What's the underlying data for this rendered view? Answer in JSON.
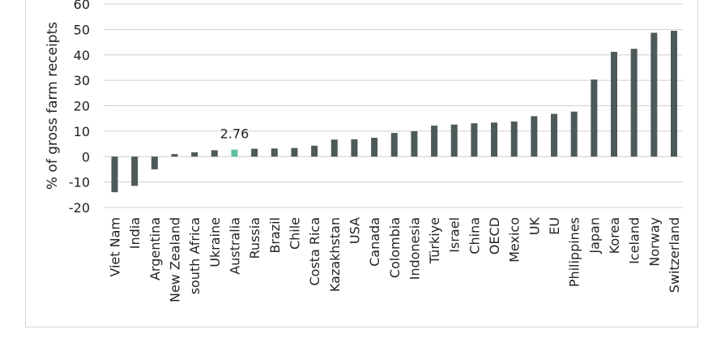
{
  "chart_data": {
    "type": "bar",
    "ylabel": "% of gross farm receipts",
    "ylim": [
      -20,
      60
    ],
    "yticks": [
      -20,
      -10,
      0,
      10,
      20,
      30,
      40,
      50,
      60
    ],
    "grid": true,
    "categories": [
      "Viet Nam",
      "India",
      "Argentina",
      "New Zealand",
      "south Africa",
      "Ukraine",
      "Australia",
      "Russia",
      "Brazil",
      "Chile",
      "Costa Rica",
      "Kazakhstan",
      "USA",
      "Canada",
      "Colombia",
      "Indonesia",
      "Türkiye",
      "Israel",
      "China",
      "OECD",
      "Mexico",
      "UK",
      "EU",
      "Philippines",
      "Japan",
      "Korea",
      "Iceland",
      "Norway",
      "Switzerland"
    ],
    "values": [
      -14,
      -11.5,
      -5,
      1,
      1.7,
      2.5,
      2.76,
      3.1,
      3.2,
      3.4,
      4.3,
      6.7,
      6.8,
      7.4,
      9.3,
      10,
      12.2,
      12.6,
      13.1,
      13.4,
      13.8,
      15.9,
      16.8,
      17.7,
      30.3,
      41.2,
      42.4,
      48.7,
      49.5
    ],
    "highlight": {
      "category": "Australia",
      "label": "2.76",
      "color": "#5fbf9f"
    },
    "bar_color": "#4d5a59"
  }
}
